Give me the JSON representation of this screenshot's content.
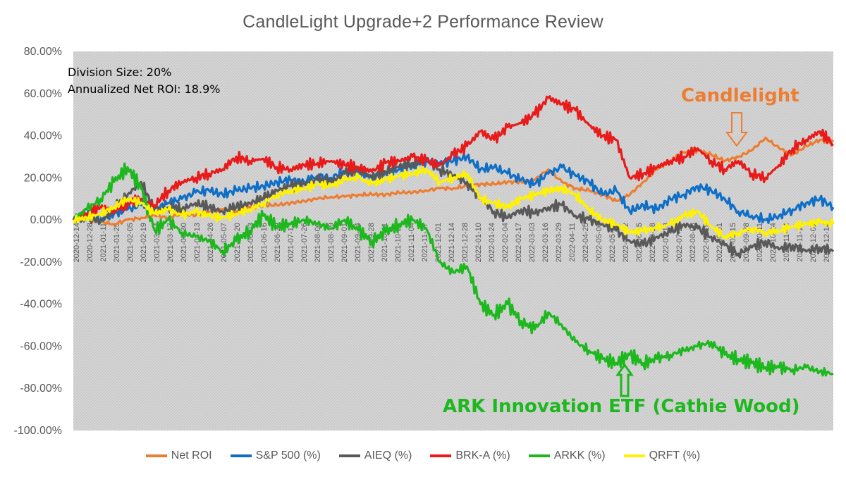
{
  "chart_data": {
    "type": "line",
    "title": "CandleLight Upgrade+2 Performance Review",
    "xlabel": "",
    "ylabel": "",
    "ylim": [
      -100,
      80
    ],
    "ytick_labels": [
      "80.00%",
      "60.00%",
      "40.00%",
      "20.00%",
      "0.00%",
      "-20.00%",
      "-40.00%",
      "-60.00%",
      "-80.00%",
      "-100.00%"
    ],
    "grid": "none (hatched gray plot area)",
    "legend_position": "bottom",
    "xtick_labels": [
      "2020-12-14",
      "2020-12-28",
      "2021-01-11",
      "2021-01-25",
      "2021-02-05",
      "2021-02-19",
      "2021-03-04",
      "2021-03-17",
      "2021-03-30",
      "2021-04-13",
      "2021-04-26",
      "2021-05-07",
      "2021-05-20",
      "2021-06-03",
      "2021-06-16",
      "2021-06-29",
      "2021-07-13",
      "2021-07-26",
      "2021-08-06",
      "2021-08-19",
      "2021-09-01",
      "2021-09-14",
      "2021-09-28",
      "2021-10-11",
      "2021-10-22",
      "2021-11-04",
      "2021-11-17",
      "2021-12-01",
      "2021-12-14",
      "2021-12-28",
      "2022-01-10",
      "2022-01-24",
      "2022-02-04",
      "2022-02-17",
      "2022-03-03",
      "2022-03-16",
      "2022-03-29",
      "2022-04-11",
      "2022-04-25",
      "2022-05-06",
      "2022-05-19",
      "2022-06-02",
      "2022-06-15",
      "2022-06-28",
      "2022-07-13",
      "2022-07-26",
      "2022-08-08",
      "2022-08-19",
      "2022-09-01",
      "2022-09-15",
      "2022-09-28",
      "2022-10-11",
      "2022-10-24",
      "2022-11-04",
      "2022-11-17",
      "2022-12-01",
      "2022-12-14"
    ],
    "series": [
      {
        "name": "Net ROI",
        "color": "#ED7D31",
        "values": [
          0,
          1,
          -1,
          -2,
          0,
          1,
          2,
          1,
          3,
          2,
          4,
          5,
          4,
          6,
          7,
          7,
          8,
          9,
          10,
          11,
          11,
          12,
          12,
          12,
          13,
          13,
          14,
          15,
          15,
          16,
          17,
          17,
          18,
          18,
          19,
          24,
          18,
          15,
          14,
          12,
          9,
          12,
          18,
          24,
          28,
          32,
          33,
          31,
          28,
          30,
          33,
          39,
          34,
          31,
          35,
          38,
          37
        ]
      },
      {
        "name": "S&P 500 (%)",
        "color": "#0F6FC6",
        "values": [
          0,
          2,
          0,
          3,
          5,
          7,
          5,
          8,
          10,
          13,
          14,
          12,
          14,
          15,
          16,
          18,
          19,
          18,
          21,
          20,
          23,
          23,
          20,
          23,
          24,
          26,
          28,
          27,
          28,
          30,
          24,
          25,
          22,
          19,
          17,
          22,
          25,
          21,
          18,
          12,
          14,
          4,
          7,
          5,
          10,
          12,
          16,
          14,
          10,
          4,
          2,
          0,
          2,
          5,
          8,
          10,
          6
        ]
      },
      {
        "name": "AIEQ (%)",
        "color": "#595959",
        "values": [
          0,
          2,
          -1,
          5,
          12,
          18,
          4,
          6,
          5,
          8,
          6,
          4,
          6,
          8,
          10,
          14,
          16,
          17,
          19,
          18,
          22,
          24,
          20,
          23,
          25,
          27,
          29,
          24,
          21,
          18,
          10,
          4,
          1,
          5,
          3,
          6,
          7,
          2,
          0,
          -2,
          -5,
          -10,
          -12,
          -8,
          -6,
          -2,
          -4,
          -8,
          -12,
          -16,
          -13,
          -10,
          -14,
          -12,
          -15,
          -13,
          -15
        ]
      },
      {
        "name": "BRK-A (%)",
        "color": "#E81A1A",
        "values": [
          0,
          3,
          6,
          4,
          8,
          10,
          7,
          14,
          18,
          20,
          22,
          24,
          30,
          28,
          29,
          25,
          24,
          26,
          27,
          28,
          26,
          25,
          23,
          27,
          28,
          30,
          28,
          26,
          31,
          35,
          42,
          38,
          44,
          46,
          50,
          58,
          55,
          52,
          45,
          40,
          38,
          20,
          22,
          25,
          28,
          30,
          34,
          28,
          24,
          28,
          22,
          20,
          26,
          34,
          38,
          42,
          36
        ]
      },
      {
        "name": "ARKK (%)",
        "color": "#1DB81D",
        "values": [
          0,
          5,
          10,
          18,
          25,
          15,
          -5,
          0,
          -6,
          -8,
          -10,
          -15,
          -10,
          -5,
          2,
          -3,
          -2,
          0,
          -2,
          -4,
          0,
          -5,
          -10,
          -6,
          -2,
          0,
          -4,
          -20,
          -25,
          -22,
          -40,
          -45,
          -40,
          -48,
          -52,
          -44,
          -50,
          -58,
          -62,
          -66,
          -68,
          -64,
          -68,
          -66,
          -64,
          -62,
          -60,
          -58,
          -64,
          -66,
          -68,
          -70,
          -70,
          -71,
          -70,
          -72,
          -73
        ]
      },
      {
        "name": "QRFT (%)",
        "color": "#FFF200",
        "values": [
          0,
          1,
          3,
          6,
          10,
          8,
          3,
          5,
          2,
          4,
          2,
          1,
          3,
          5,
          8,
          12,
          14,
          15,
          17,
          16,
          19,
          20,
          17,
          19,
          21,
          22,
          24,
          18,
          20,
          22,
          10,
          8,
          6,
          10,
          12,
          14,
          15,
          12,
          5,
          0,
          -2,
          -6,
          -5,
          -4,
          -2,
          2,
          4,
          -3,
          -8,
          -6,
          -4,
          -6,
          -5,
          -3,
          -2,
          -1,
          -2
        ]
      }
    ]
  },
  "annotations": {
    "division_size": "Division Size: 20%",
    "annualized_roi": "Annualized Net ROI: 18.9%",
    "candlelight": "Candlelight",
    "ark": "ARK Innovation ETF (Cathie Wood)"
  }
}
